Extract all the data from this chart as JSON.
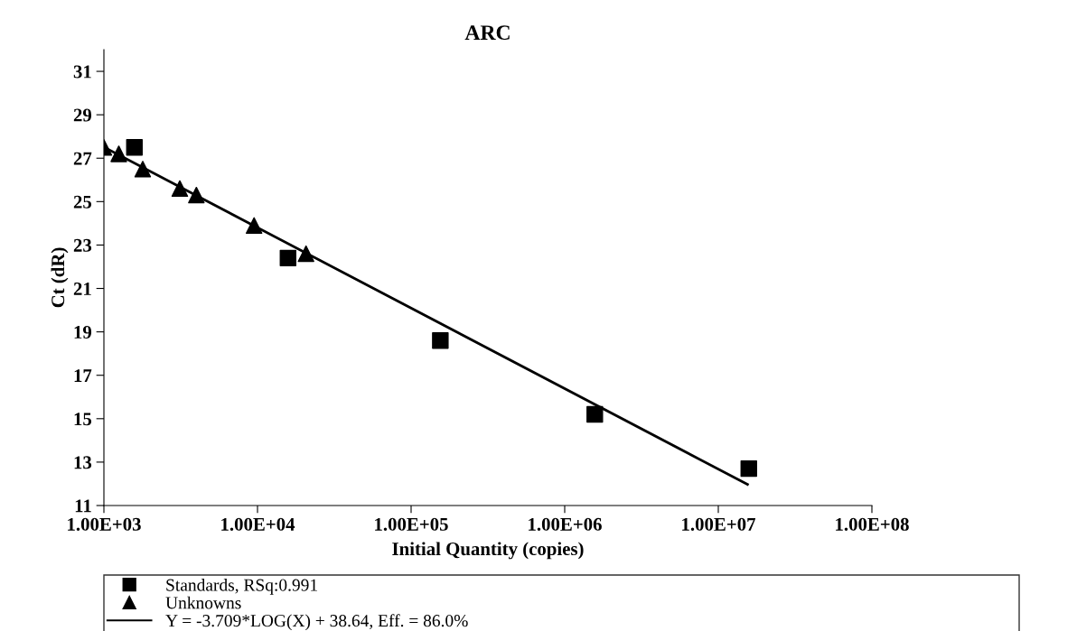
{
  "chart_data": {
    "type": "scatter",
    "title": "ARC",
    "xlabel": "Initial Quantity (copies)",
    "ylabel": "Ct (dR)",
    "log": "x",
    "xlim": [
      1000,
      100000000
    ],
    "xticks": [
      {
        "value": 1000,
        "label": "1.00E+03"
      },
      {
        "value": 10000,
        "label": "1.00E+04"
      },
      {
        "value": 100000,
        "label": "1.00E+05"
      },
      {
        "value": 1000000,
        "label": "1.00E+06"
      },
      {
        "value": 10000000,
        "label": "1.00E+07"
      },
      {
        "value": 100000000,
        "label": "1.00E+08"
      }
    ],
    "ylim": [
      11,
      32
    ],
    "yticks": [
      11,
      13,
      15,
      17,
      19,
      21,
      23,
      25,
      27,
      29,
      31
    ],
    "grid": false,
    "legend": "bottom",
    "series": [
      {
        "name": "Standards, RSq:0.991",
        "marker": "square",
        "color": "#000000",
        "x": [
          1580,
          15800,
          155000,
          1570000,
          15800000
        ],
        "values": [
          27.5,
          22.4,
          18.6,
          15.2,
          12.7
        ]
      },
      {
        "name": "Unknowns",
        "marker": "triangle",
        "color": "#000000",
        "x": [
          1000,
          1250,
          1790,
          3120,
          4000,
          9500,
          20700
        ],
        "values": [
          27.5,
          27.2,
          26.5,
          25.6,
          25.3,
          23.9,
          22.6
        ]
      },
      {
        "name": "Y = -3.709*LOG(X) + 38.64, Eff. = 86.0%",
        "type": "line",
        "marker": "none",
        "line_style": "solid",
        "color": "#000000",
        "x": [
          1000,
          15500000
        ],
        "values": [
          27.51,
          11.97
        ]
      }
    ]
  }
}
